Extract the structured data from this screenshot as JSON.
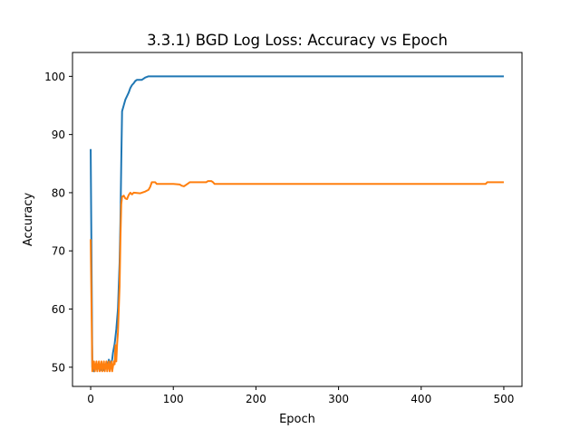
{
  "chart_data": {
    "type": "line",
    "title": "3.3.1) BGD Log Loss: Accuracy vs Epoch",
    "xlabel": "Epoch",
    "ylabel": "Accuracy",
    "xlim": [
      -22,
      522
    ],
    "ylim": [
      46.7,
      104.1
    ],
    "xticks": [
      0,
      100,
      200,
      300,
      400,
      500
    ],
    "yticks": [
      50,
      60,
      70,
      80,
      90,
      100
    ],
    "grid": false,
    "legend": "none",
    "series": [
      {
        "color": "#1f77b4",
        "points": [
          [
            0,
            87.5
          ],
          [
            2,
            50
          ],
          [
            4,
            49.3
          ],
          [
            6,
            50.5
          ],
          [
            8,
            49.5
          ],
          [
            10,
            50.3
          ],
          [
            12,
            49.5
          ],
          [
            14,
            50.5
          ],
          [
            16,
            49.5
          ],
          [
            18,
            50.5
          ],
          [
            20,
            50
          ],
          [
            22,
            51.3
          ],
          [
            24,
            50.5
          ],
          [
            26,
            51.3
          ],
          [
            27,
            52.5
          ],
          [
            29,
            54
          ],
          [
            31,
            56.5
          ],
          [
            33,
            60
          ],
          [
            35,
            68
          ],
          [
            36,
            75
          ],
          [
            37,
            85
          ],
          [
            38,
            94
          ],
          [
            40,
            95
          ],
          [
            42,
            96
          ],
          [
            44,
            96.6
          ],
          [
            46,
            97.2
          ],
          [
            48,
            98
          ],
          [
            50,
            98.5
          ],
          [
            52,
            98.8
          ],
          [
            54,
            99.2
          ],
          [
            56,
            99.4
          ],
          [
            60,
            99.4
          ],
          [
            62,
            99.4
          ],
          [
            64,
            99.6
          ],
          [
            66,
            99.8
          ],
          [
            70,
            100
          ],
          [
            80,
            100
          ],
          [
            90,
            100
          ],
          [
            92,
            100
          ],
          [
            500,
            100
          ]
        ]
      },
      {
        "color": "#ff7f0e",
        "points": [
          [
            0,
            72
          ],
          [
            2,
            49.3
          ],
          [
            4,
            51
          ],
          [
            5,
            49.3
          ],
          [
            7,
            51
          ],
          [
            8,
            49.3
          ],
          [
            10,
            51
          ],
          [
            11,
            49.3
          ],
          [
            13,
            51
          ],
          [
            14,
            49.3
          ],
          [
            16,
            51
          ],
          [
            17,
            49.3
          ],
          [
            19,
            51
          ],
          [
            20,
            49.3
          ],
          [
            22,
            51
          ],
          [
            23,
            49.3
          ],
          [
            25,
            51
          ],
          [
            26,
            49.3
          ],
          [
            28,
            51
          ],
          [
            29,
            50.5
          ],
          [
            30,
            53.8
          ],
          [
            31,
            51
          ],
          [
            32,
            54
          ],
          [
            33,
            56
          ],
          [
            34,
            60
          ],
          [
            35,
            64
          ],
          [
            36,
            72
          ],
          [
            37,
            78
          ],
          [
            38,
            79.3
          ],
          [
            40,
            79.5
          ],
          [
            42,
            79
          ],
          [
            44,
            78.9
          ],
          [
            46,
            79.6
          ],
          [
            48,
            80
          ],
          [
            50,
            79.7
          ],
          [
            52,
            80
          ],
          [
            60,
            79.9
          ],
          [
            66,
            80.2
          ],
          [
            70,
            80.5
          ],
          [
            72,
            81
          ],
          [
            74,
            81.8
          ],
          [
            78,
            81.8
          ],
          [
            80,
            81.5
          ],
          [
            100,
            81.5
          ],
          [
            108,
            81.4
          ],
          [
            110,
            81.2
          ],
          [
            113,
            81.1
          ],
          [
            116,
            81.4
          ],
          [
            118,
            81.6
          ],
          [
            120,
            81.8
          ],
          [
            140,
            81.8
          ],
          [
            142,
            82
          ],
          [
            146,
            82
          ],
          [
            148,
            81.8
          ],
          [
            150,
            81.5
          ],
          [
            478,
            81.5
          ],
          [
            480,
            81.8
          ],
          [
            500,
            81.8
          ]
        ]
      }
    ]
  }
}
